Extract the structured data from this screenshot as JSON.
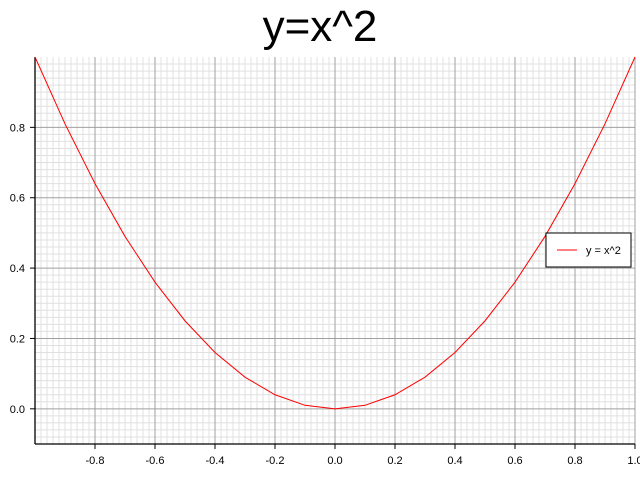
{
  "chart_data": {
    "type": "line",
    "title": "y=x^2",
    "xlabel": "",
    "ylabel": "",
    "xlim": [
      -1.0,
      1.0
    ],
    "ylim": [
      -0.1,
      1.0
    ],
    "grid": {
      "major": true,
      "minor": true,
      "minor_subdivisions": 10
    },
    "legend_position": "right",
    "x_ticks": [
      "-0.8",
      "-0.6",
      "-0.4",
      "-0.2",
      "0.0",
      "0.2",
      "0.4",
      "0.6",
      "0.8",
      "1.0"
    ],
    "y_ticks": [
      "0.0",
      "0.2",
      "0.4",
      "0.6",
      "0.8"
    ],
    "series": [
      {
        "name": "y = x^2",
        "color": "#ff0000",
        "x": [
          -1.0,
          -0.9,
          -0.8,
          -0.7,
          -0.6,
          -0.5,
          -0.4,
          -0.3,
          -0.2,
          -0.1,
          0.0,
          0.1,
          0.2,
          0.3,
          0.4,
          0.5,
          0.6,
          0.7,
          0.8,
          0.9,
          1.0
        ],
        "y": [
          1.0,
          0.81,
          0.64,
          0.49,
          0.36,
          0.25,
          0.16,
          0.09,
          0.04,
          0.01,
          0.0,
          0.01,
          0.04,
          0.09,
          0.16,
          0.25,
          0.36,
          0.49,
          0.64,
          0.81,
          1.0
        ]
      }
    ]
  }
}
